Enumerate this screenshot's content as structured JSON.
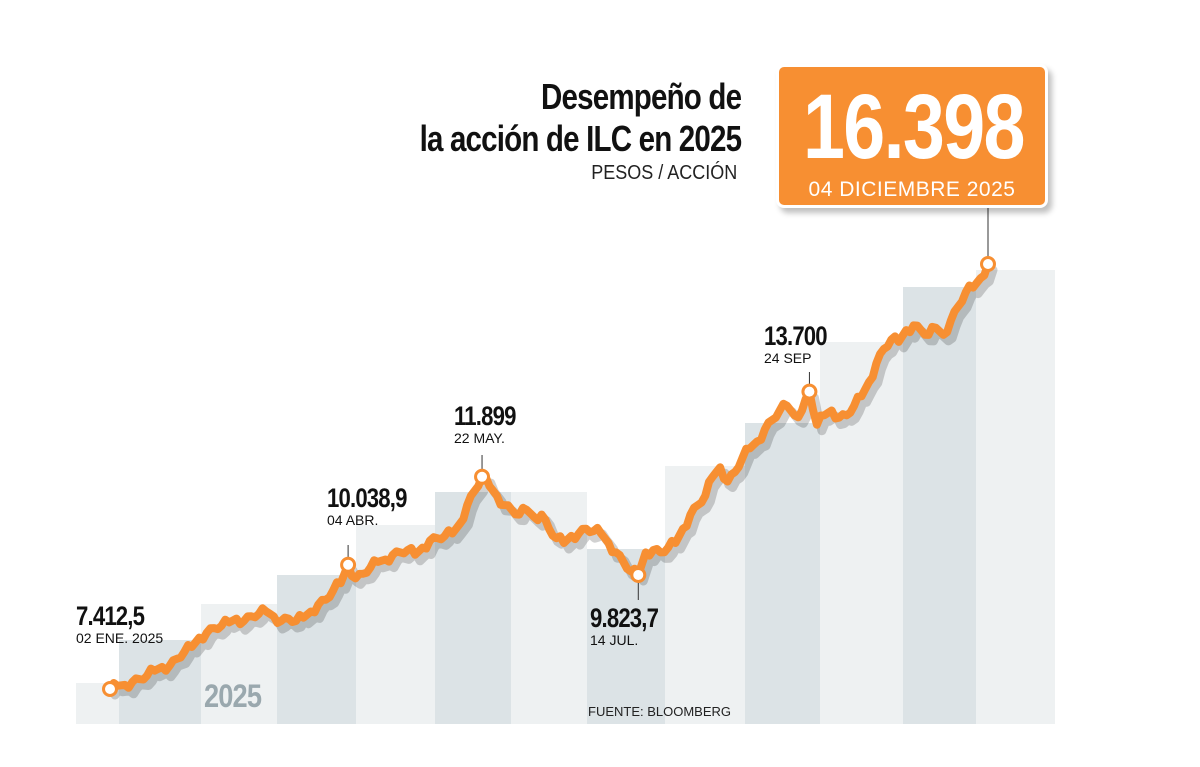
{
  "title_line1": "Desempeño de",
  "title_line2": "la acción de ILC en 2025",
  "subtitle": "PESOS / ACCIÓN",
  "callout": {
    "value": "16.398",
    "date": "04 DICIEMBRE 2025"
  },
  "year_label": "2025",
  "source": "FUENTE: BLOOMBERG",
  "colors": {
    "line": "#f78f32",
    "band_dark": "#dce3e6",
    "band_light": "#eef1f2"
  },
  "annotations": [
    {
      "value": "7.412,5",
      "date": "02 ENE. 2025"
    },
    {
      "value": "10.038,9",
      "date": "04 ABR."
    },
    {
      "value": "11.899",
      "date": "22 MAY."
    },
    {
      "value": "9.823,7",
      "date": "14 JUL."
    },
    {
      "value": "13.700",
      "date": "24 SEP"
    }
  ],
  "chart_data": {
    "type": "line",
    "title": "Desempeño de la acción de ILC en 2025",
    "ylabel": "PESOS / ACCIÓN",
    "x_start": "2025-01-02",
    "x_end": "2025-12-04",
    "ylim": [
      7200,
      16600
    ],
    "grid": false,
    "series": [
      {
        "values": [
          7412.5,
          7480,
          7500,
          7560,
          7620,
          7700,
          7800,
          7880,
          7900,
          8050,
          8200,
          8300,
          8500,
          8600,
          8700,
          8750,
          8820,
          8900,
          8850,
          8950,
          9000,
          9050,
          8950,
          8850,
          8900,
          8850,
          8920,
          9050,
          9200,
          9300,
          9500,
          9650,
          10038.9,
          9750,
          9850,
          9980,
          10100,
          10150,
          10250,
          10300,
          10350,
          10250,
          10400,
          10550,
          10600,
          10650,
          10700,
          10900,
          11300,
          11600,
          11899,
          11700,
          11500,
          11300,
          11200,
          11100,
          11200,
          11050,
          11100,
          10800,
          10600,
          10500,
          10650,
          10700,
          10800,
          10750,
          10700,
          10500,
          10300,
          10100,
          9900,
          9823.7,
          10300,
          10350,
          10300,
          10400,
          10500,
          10800,
          11100,
          11300,
          11500,
          11900,
          12100,
          11800,
          12000,
          12300,
          12500,
          12650,
          12900,
          13100,
          13300,
          13400,
          13200,
          13300,
          13700,
          13000,
          13200,
          13300,
          13150,
          13200,
          13400,
          13600,
          13900,
          14300,
          14600,
          14800,
          14750,
          15000,
          15100,
          15000,
          14900,
          15050,
          14900,
          15200,
          15500,
          15800,
          15900,
          16100,
          16398
        ]
      }
    ]
  }
}
